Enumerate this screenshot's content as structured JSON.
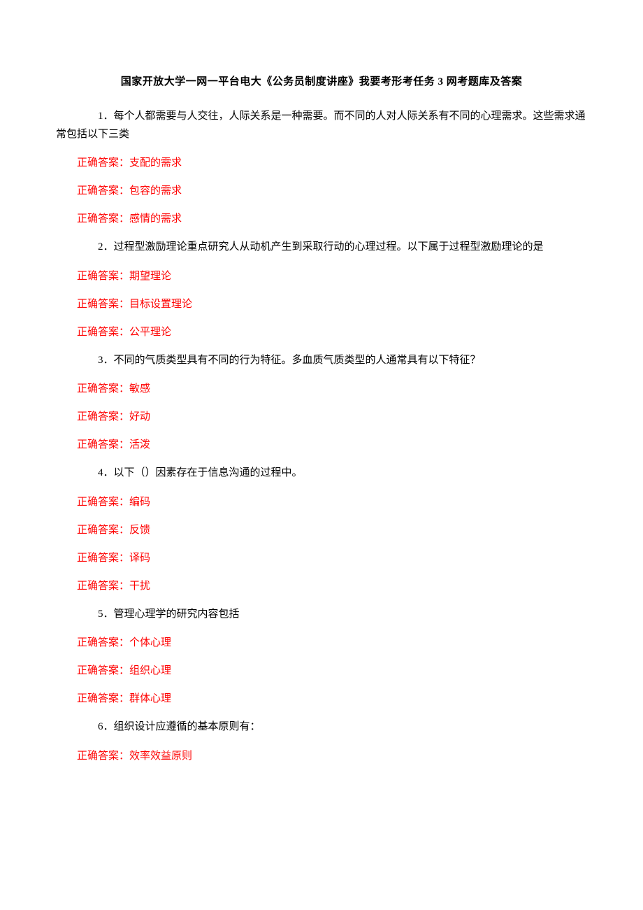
{
  "title": "国家开放大学一网一平台电大《公务员制度讲座》我要考形考任务 3 网考题库及答案",
  "answer_prefix": "正确答案：",
  "text_color": "#000000",
  "answer_color": "#ff0000",
  "background_color": "#ffffff",
  "title_fontsize": 15,
  "body_fontsize": 15,
  "questions": [
    {
      "number": "1",
      "text": "．每个人都需要与人交往，人际关系是一种需要。而不同的人对人际关系有不同的心理需求。这些需求通常包括以下三类",
      "answers": [
        "支配的需求",
        "包容的需求",
        "感情的需求"
      ]
    },
    {
      "number": "2",
      "text": "．过程型激励理论重点研究人从动机产生到采取行动的心理过程。以下属于过程型激励理论的是",
      "answers": [
        "期望理论",
        "目标设置理论",
        "公平理论"
      ]
    },
    {
      "number": "3",
      "text": "．不同的气质类型具有不同的行为特征。多血质气质类型的人通常具有以下特征？",
      "answers": [
        "敏感",
        "好动",
        "活泼"
      ]
    },
    {
      "number": "4",
      "text": "．以下（）因素存在于信息沟通的过程中。",
      "answers": [
        "编码",
        "反馈",
        "译码",
        "干扰"
      ]
    },
    {
      "number": "5",
      "text": "．管理心理学的研究内容包括",
      "answers": [
        "个体心理",
        "组织心理",
        "群体心理"
      ]
    },
    {
      "number": "6",
      "text": "．组织设计应遵循的基本原则有：",
      "answers": [
        "效率效益原则"
      ]
    }
  ]
}
